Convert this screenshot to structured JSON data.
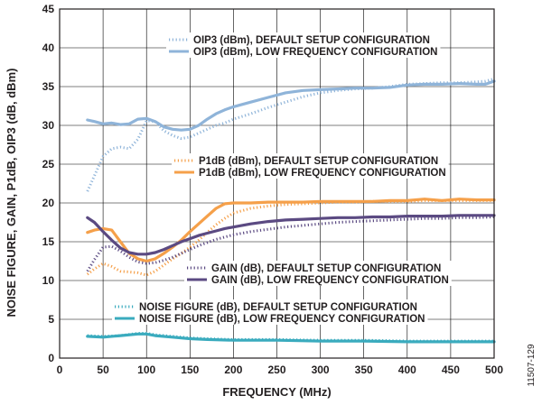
{
  "figure_id": "11507-129",
  "chart_data": {
    "type": "line",
    "title": "",
    "xlabel": "FREQUENCY (MHz)",
    "ylabel": "NOISE FIGURE, GAIN, P1dB, OIP3 (dB, dBm)",
    "xlim": [
      0,
      500
    ],
    "ylim": [
      0,
      45
    ],
    "x_ticks": [
      0,
      50,
      100,
      150,
      200,
      250,
      300,
      350,
      400,
      450,
      500
    ],
    "y_ticks": [
      0,
      5,
      10,
      15,
      20,
      25,
      30,
      35,
      40,
      45
    ],
    "grid": true,
    "colors": {
      "oip3": "#8fb4d9",
      "p1db": "#f5a04a",
      "gain": "#5b4a82",
      "nf": "#3aabbe",
      "grid": "#000000",
      "text": "#231f20"
    },
    "series": [
      {
        "name": "OIP3 (dBm), DEFAULT SETUP CONFIGURATION",
        "group": "oip3",
        "style": "dotted",
        "x": [
          32,
          40,
          50,
          60,
          70,
          80,
          90,
          100,
          110,
          120,
          130,
          140,
          150,
          160,
          170,
          180,
          190,
          200,
          220,
          240,
          260,
          280,
          300,
          320,
          340,
          360,
          380,
          400,
          420,
          440,
          460,
          480,
          490,
          500
        ],
        "y": [
          21.5,
          23.5,
          26,
          27,
          27.2,
          27,
          28.2,
          30.6,
          30.5,
          29.3,
          28.7,
          28.3,
          28.5,
          29,
          29.5,
          30,
          30.3,
          30.8,
          31.5,
          32.3,
          33,
          33.7,
          34.2,
          34.5,
          34.7,
          34.8,
          35,
          35.3,
          35.4,
          35.5,
          35.5,
          35.6,
          35.7,
          36
        ]
      },
      {
        "name": "OIP3 (dBm), LOW FREQUENCY CONFIGURATION",
        "group": "oip3",
        "style": "solid",
        "x": [
          32,
          40,
          50,
          60,
          70,
          80,
          90,
          100,
          110,
          120,
          130,
          140,
          150,
          160,
          170,
          180,
          190,
          200,
          220,
          240,
          260,
          280,
          300,
          320,
          340,
          360,
          380,
          400,
          420,
          440,
          460,
          480,
          490,
          500
        ],
        "y": [
          30.7,
          30.5,
          30.2,
          30.3,
          30.1,
          30.2,
          30.8,
          30.9,
          30.5,
          29.8,
          29.5,
          29.4,
          29.5,
          30,
          30.8,
          31.5,
          32,
          32.4,
          33,
          33.6,
          34.2,
          34.5,
          34.6,
          34.7,
          34.8,
          34.8,
          34.9,
          35.2,
          35.3,
          35.3,
          35.4,
          35.3,
          35.3,
          35.7
        ]
      },
      {
        "name": "P1dB (dBm), DEFAULT SETUP CONFIGURATION",
        "group": "p1db",
        "style": "dotted",
        "x": [
          32,
          40,
          50,
          60,
          70,
          80,
          90,
          100,
          110,
          120,
          130,
          140,
          150,
          160,
          170,
          180,
          190,
          200,
          220,
          240,
          260,
          280,
          300,
          320,
          340,
          360,
          380,
          400,
          420,
          440,
          460,
          480,
          500
        ],
        "y": [
          10.8,
          11.5,
          12.2,
          11.8,
          11.2,
          11.1,
          11,
          10.7,
          11.2,
          12,
          12.8,
          13.5,
          14.3,
          15.2,
          16.2,
          17.2,
          18,
          18.7,
          19.3,
          19.6,
          19.8,
          19.9,
          20,
          20.1,
          20.1,
          20.2,
          20.2,
          20.2,
          20.3,
          20.3,
          20.3,
          20.3,
          20.3
        ]
      },
      {
        "name": "P1dB (dBm), LOW FREQUENCY CONFIGURATION",
        "group": "p1db",
        "style": "solid",
        "x": [
          32,
          40,
          50,
          60,
          70,
          80,
          90,
          100,
          110,
          120,
          130,
          140,
          150,
          160,
          170,
          180,
          190,
          200,
          220,
          240,
          260,
          280,
          300,
          320,
          340,
          360,
          380,
          400,
          420,
          440,
          460,
          480,
          500
        ],
        "y": [
          16.2,
          16.5,
          16.7,
          16.5,
          15,
          13.5,
          12.8,
          12.5,
          12.8,
          13.5,
          14.3,
          15.2,
          16.3,
          17.3,
          18.3,
          19.3,
          19.9,
          20,
          20,
          20.1,
          20.1,
          20.1,
          20.2,
          20.2,
          20.2,
          20.2,
          20.3,
          20.3,
          20.5,
          20.3,
          20.5,
          20.4,
          20.4
        ]
      },
      {
        "name": "GAIN (dB), DEFAULT SETUP CONFIGURATION",
        "group": "gain",
        "style": "dotted",
        "x": [
          32,
          40,
          50,
          60,
          70,
          80,
          90,
          100,
          110,
          120,
          130,
          140,
          150,
          160,
          170,
          180,
          190,
          200,
          220,
          240,
          260,
          280,
          300,
          320,
          340,
          360,
          380,
          400,
          420,
          440,
          460,
          480,
          500
        ],
        "y": [
          11.2,
          12.7,
          14.3,
          14.4,
          13.8,
          13,
          12.4,
          12.2,
          12.3,
          12.6,
          13,
          13.5,
          14,
          14.5,
          14.9,
          15.3,
          15.6,
          15.9,
          16.3,
          16.6,
          16.9,
          17.1,
          17.3,
          17.5,
          17.6,
          17.7,
          17.8,
          17.9,
          18,
          18,
          18.1,
          18.1,
          18.2
        ]
      },
      {
        "name": "GAIN (dB), LOW FREQUENCY CONFIGURATION",
        "group": "gain",
        "style": "solid",
        "x": [
          32,
          40,
          50,
          60,
          70,
          80,
          90,
          100,
          110,
          120,
          130,
          140,
          150,
          160,
          170,
          180,
          190,
          200,
          220,
          240,
          260,
          280,
          300,
          320,
          340,
          360,
          380,
          400,
          420,
          440,
          460,
          480,
          500
        ],
        "y": [
          18.1,
          17.5,
          16.3,
          15.2,
          14.2,
          13.6,
          13.4,
          13.4,
          13.6,
          14,
          14.5,
          15,
          15.4,
          15.8,
          16.1,
          16.4,
          16.7,
          16.9,
          17.3,
          17.6,
          17.8,
          17.9,
          18,
          18.1,
          18.1,
          18.2,
          18.2,
          18.3,
          18.3,
          18.3,
          18.4,
          18.4,
          18.4
        ]
      },
      {
        "name": "NOISE FIGURE (dB), DEFAULT SETUP CONFIGURATION",
        "group": "nf",
        "style": "dotted",
        "x": [
          32,
          50,
          70,
          90,
          100,
          110,
          130,
          150,
          170,
          200,
          250,
          300,
          350,
          400,
          450,
          500
        ],
        "y": [
          2.9,
          2.8,
          2.9,
          3.2,
          3.2,
          3.0,
          2.8,
          2.6,
          2.5,
          2.4,
          2.4,
          2.3,
          2.3,
          2.2,
          2.2,
          2.2
        ]
      },
      {
        "name": "NOISE FIGURE (dB), LOW FREQUENCY CONFIGURATION",
        "group": "nf",
        "style": "solid",
        "x": [
          32,
          50,
          70,
          90,
          100,
          110,
          130,
          150,
          170,
          200,
          250,
          300,
          350,
          400,
          450,
          500
        ],
        "y": [
          2.8,
          2.7,
          2.9,
          3.1,
          3.1,
          2.9,
          2.7,
          2.5,
          2.4,
          2.3,
          2.3,
          2.2,
          2.2,
          2.1,
          2.1,
          2.1
        ]
      }
    ]
  }
}
